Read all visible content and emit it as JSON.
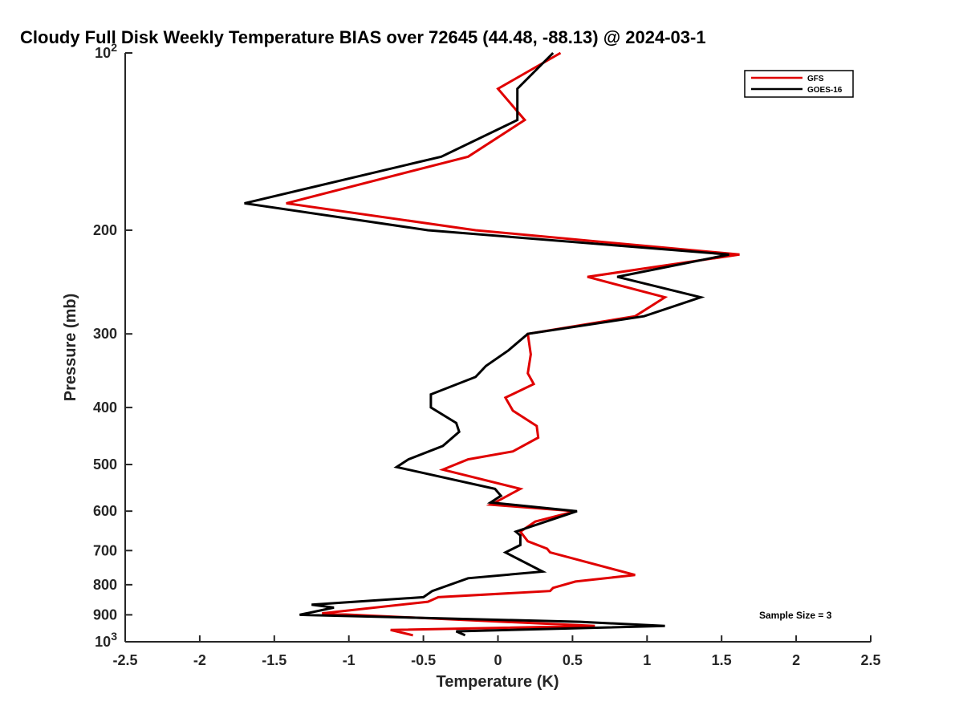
{
  "chart_data": {
    "type": "line",
    "title": "Cloudy Full Disk Weekly Temperature BIAS over 72645 (44.48, -88.13) @ 2024-03-1",
    "xlabel": "Temperature (K)",
    "ylabel": "Pressure (mb)",
    "xlim": [
      -2.5,
      2.5
    ],
    "ylim": [
      100,
      1000
    ],
    "y_scale": "log",
    "y_reversed": true,
    "x_ticks": [
      "-2.5",
      "-2",
      "-1.5",
      "-1",
      "-0.5",
      "0",
      "0.5",
      "1",
      "1.5",
      "2",
      "2.5"
    ],
    "x_tick_values": [
      -2.5,
      -2,
      -1.5,
      -1,
      -0.5,
      0,
      0.5,
      1,
      1.5,
      2,
      2.5
    ],
    "y_ticks": [
      {
        "value": 100,
        "base": "10",
        "exp": "2"
      },
      {
        "value": 200,
        "label": "200"
      },
      {
        "value": 300,
        "label": "300"
      },
      {
        "value": 400,
        "label": "400"
      },
      {
        "value": 500,
        "label": "500"
      },
      {
        "value": 600,
        "label": "600"
      },
      {
        "value": 700,
        "label": "700"
      },
      {
        "value": 800,
        "label": "800"
      },
      {
        "value": 900,
        "label": "900"
      },
      {
        "value": 1000,
        "base": "10",
        "exp": "3"
      }
    ],
    "grid": false,
    "legend_position": "top-right",
    "annotation": "Sample Size = 3",
    "series": [
      {
        "name": "GFS",
        "color": "#e00000",
        "points": [
          [
            0.42,
            100
          ],
          [
            0.0,
            115
          ],
          [
            0.18,
            130
          ],
          [
            -0.2,
            150
          ],
          [
            -1.42,
            180
          ],
          [
            -0.15,
            200
          ],
          [
            1.62,
            220
          ],
          [
            0.6,
            240
          ],
          [
            1.12,
            260
          ],
          [
            0.92,
            280
          ],
          [
            0.2,
            300
          ],
          [
            0.22,
            325
          ],
          [
            0.2,
            350
          ],
          [
            0.24,
            365
          ],
          [
            0.05,
            385
          ],
          [
            0.1,
            405
          ],
          [
            0.26,
            430
          ],
          [
            0.27,
            450
          ],
          [
            0.1,
            475
          ],
          [
            -0.2,
            490
          ],
          [
            -0.37,
            510
          ],
          [
            0.15,
            550
          ],
          [
            -0.02,
            580
          ],
          [
            -0.05,
            585
          ],
          [
            0.52,
            600
          ],
          [
            0.25,
            625
          ],
          [
            0.15,
            650
          ],
          [
            0.2,
            675
          ],
          [
            0.33,
            695
          ],
          [
            0.35,
            705
          ],
          [
            0.92,
            770
          ],
          [
            0.52,
            790
          ],
          [
            0.37,
            810
          ],
          [
            0.35,
            820
          ],
          [
            -0.4,
            840
          ],
          [
            -0.47,
            855
          ],
          [
            -1.18,
            895
          ],
          [
            0.65,
            940
          ],
          [
            -0.72,
            955
          ],
          [
            -0.57,
            975
          ]
        ]
      },
      {
        "name": "GOES-16",
        "color": "#000000",
        "points": [
          [
            0.37,
            100
          ],
          [
            0.13,
            115
          ],
          [
            0.13,
            130
          ],
          [
            -0.38,
            150
          ],
          [
            -1.7,
            180
          ],
          [
            -0.47,
            200
          ],
          [
            1.55,
            220
          ],
          [
            0.8,
            240
          ],
          [
            1.36,
            260
          ],
          [
            0.98,
            280
          ],
          [
            0.2,
            300
          ],
          [
            0.07,
            320
          ],
          [
            -0.08,
            340
          ],
          [
            -0.15,
            355
          ],
          [
            -0.45,
            380
          ],
          [
            -0.45,
            400
          ],
          [
            -0.28,
            425
          ],
          [
            -0.26,
            440
          ],
          [
            -0.37,
            465
          ],
          [
            -0.6,
            490
          ],
          [
            -0.68,
            505
          ],
          [
            -0.02,
            550
          ],
          [
            0.02,
            565
          ],
          [
            -0.05,
            580
          ],
          [
            0.53,
            600
          ],
          [
            0.12,
            650
          ],
          [
            0.15,
            660
          ],
          [
            0.15,
            685
          ],
          [
            0.05,
            705
          ],
          [
            0.3,
            760
          ],
          [
            -0.2,
            780
          ],
          [
            -0.44,
            820
          ],
          [
            -0.5,
            840
          ],
          [
            -1.25,
            865
          ],
          [
            -1.1,
            875
          ],
          [
            -1.33,
            900
          ],
          [
            0.55,
            925
          ],
          [
            1.12,
            940
          ],
          [
            -0.28,
            960
          ],
          [
            -0.22,
            975
          ]
        ]
      }
    ]
  }
}
